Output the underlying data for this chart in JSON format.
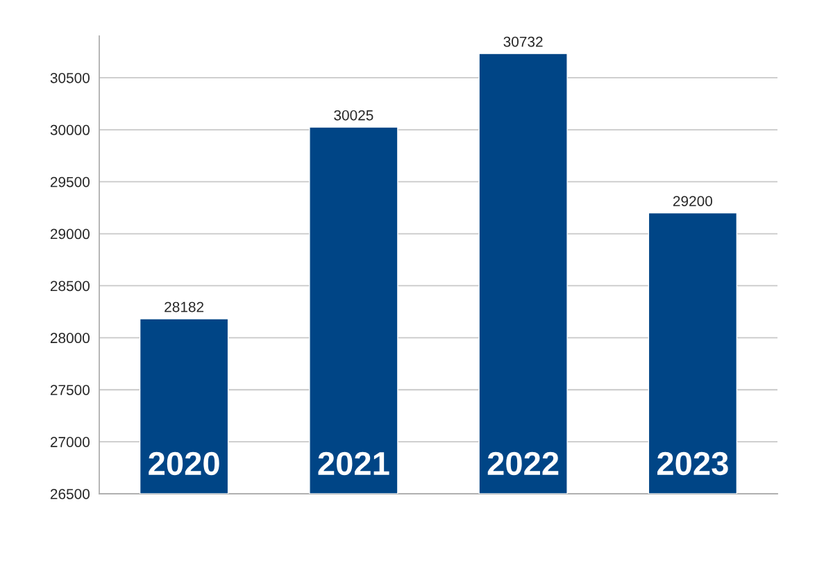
{
  "chart_data": {
    "type": "bar",
    "categories": [
      "2020",
      "2021",
      "2022",
      "2023"
    ],
    "values": [
      28182,
      30025,
      30732,
      29200
    ],
    "color": "#004586",
    "ylim": [
      26500,
      30900
    ],
    "yticks": [
      26500,
      27000,
      27500,
      28000,
      28500,
      29000,
      29500,
      30000,
      30500
    ],
    "grid": "y",
    "data_labels": true
  }
}
